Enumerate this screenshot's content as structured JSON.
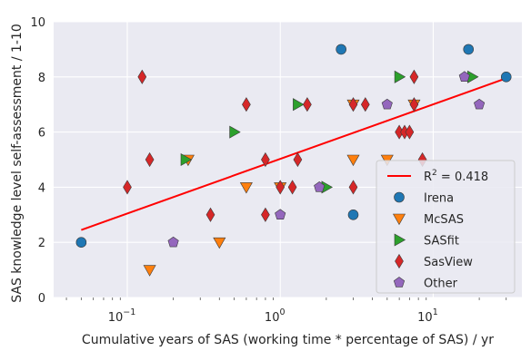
{
  "chart_data": {
    "type": "scatter",
    "xlabel": "Cumulative years of SAS (working time * percentage of SAS) / yr",
    "ylabel": "SAS knowledge level self-assessment / 1-10",
    "x_scale": "log",
    "xlim": [
      0.033,
      38
    ],
    "ylim": [
      0,
      10
    ],
    "x_ticks": [
      {
        "value": 0.1,
        "base": "10",
        "exp": "−1"
      },
      {
        "value": 1,
        "base": "10",
        "exp": "0"
      },
      {
        "value": 10,
        "base": "10",
        "exp": "1"
      }
    ],
    "y_ticks": [
      0,
      2,
      4,
      6,
      8,
      10
    ],
    "grid": true,
    "background": "#eaeaf2",
    "legend_position": "lower-right",
    "fit": {
      "label": "R² = 0.418",
      "label_base": "R",
      "label_sup": "2",
      "label_rest": " = 0.418",
      "color": "#ff0000",
      "x": [
        0.05,
        30
      ],
      "y": [
        2.45,
        7.95
      ]
    },
    "series": [
      {
        "name": "Irena",
        "marker": "circle",
        "color": "#1f77b4",
        "x": [
          0.05,
          2.5,
          3.0,
          17,
          30
        ],
        "y": [
          2,
          9,
          3,
          9,
          8
        ]
      },
      {
        "name": "McSAS",
        "marker": "triangle-down",
        "color": "#ff7f0e",
        "x": [
          0.14,
          0.25,
          0.4,
          0.6,
          1.0,
          3.0,
          3.0,
          5.0,
          7.5
        ],
        "y": [
          1,
          5,
          2,
          4,
          4,
          7,
          5,
          5,
          7
        ]
      },
      {
        "name": "SASfit",
        "marker": "triangle-right",
        "color": "#2ca02c",
        "x": [
          0.24,
          0.5,
          1.3,
          2.0,
          6.0,
          18
        ],
        "y": [
          5,
          6,
          7,
          4,
          8,
          8
        ]
      },
      {
        "name": "SasView",
        "marker": "diamond",
        "color": "#d62728",
        "x": [
          0.1,
          0.125,
          0.14,
          0.35,
          0.6,
          0.8,
          0.8,
          1.0,
          1.2,
          1.3,
          1.5,
          3.0,
          3.0,
          3.6,
          6.0,
          6.5,
          7.0,
          7.5,
          7.5,
          8.5
        ],
        "y": [
          4,
          8,
          5,
          3,
          7,
          5,
          3,
          4,
          4,
          5,
          7,
          7,
          4,
          7,
          6,
          6,
          6,
          8,
          7,
          5
        ]
      },
      {
        "name": "Other",
        "marker": "pentagon",
        "color": "#9467bd",
        "x": [
          0.2,
          1.0,
          1.8,
          5.0,
          16,
          20
        ],
        "y": [
          2,
          3,
          4,
          7,
          8,
          7
        ]
      }
    ]
  }
}
